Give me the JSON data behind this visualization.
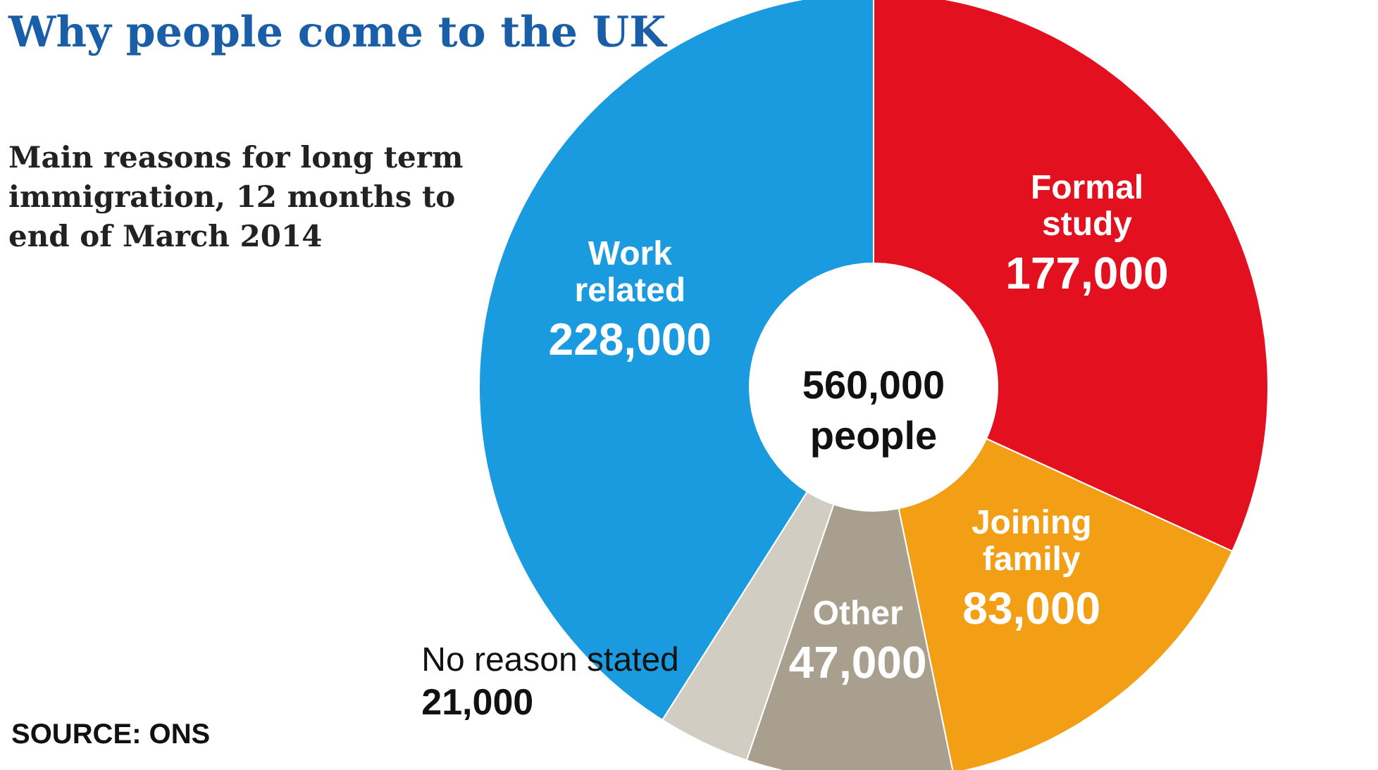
{
  "chart_data": {
    "type": "donut",
    "title": "Why people come to the UK",
    "subtitle": "Main reasons for long term immigration, 12 months to end of March 2014",
    "categories": [
      "Formal study",
      "Joining family",
      "Other",
      "No reason stated",
      "Work related"
    ],
    "values": [
      177000,
      83000,
      47000,
      21000,
      228000
    ],
    "colors": [
      "#e3101f",
      "#f29f16",
      "#a89f8e",
      "#d2cdc3",
      "#1a9be0"
    ],
    "value_labels": [
      "177,000",
      "83,000",
      "47,000",
      "21,000",
      "228,000"
    ],
    "annotations": [
      "560,000 people",
      "SOURCE: ONS"
    ]
  }
}
